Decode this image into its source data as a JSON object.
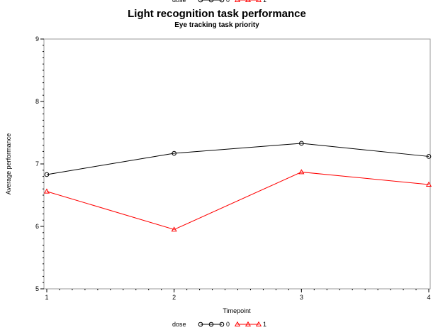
{
  "chart_data": {
    "type": "line",
    "title": "Light recognition task performance",
    "subtitle": "Eye tracking task priority",
    "xlabel": "Timepoint",
    "ylabel": "Average performance",
    "x": [
      1,
      2,
      3,
      4
    ],
    "x_ticks": [
      "1",
      "2",
      "3",
      "4"
    ],
    "y_ticks": [
      "5",
      "6",
      "7",
      "8",
      "9"
    ],
    "ylim": [
      5,
      9
    ],
    "grid": false,
    "legend": {
      "title": "dose",
      "placement": "bottom",
      "top_fragment_title": "dose",
      "top_fragment_labels": [
        "0",
        "1"
      ]
    },
    "series": [
      {
        "name": "0",
        "values": [
          6.83,
          7.17,
          7.33,
          7.12
        ],
        "color": "#000000",
        "marker": "circle"
      },
      {
        "name": "1",
        "values": [
          6.56,
          5.95,
          6.87,
          6.67
        ],
        "color": "#ff0000",
        "marker": "triangle"
      }
    ]
  }
}
